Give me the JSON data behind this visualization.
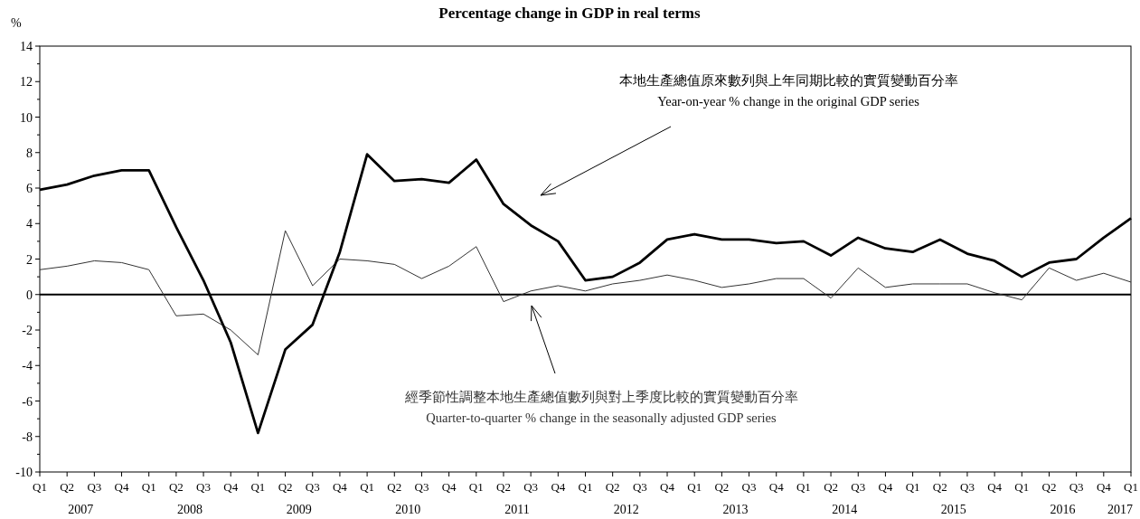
{
  "chart_data": {
    "type": "line",
    "title": "Percentage change in GDP in real terms",
    "ylabel": "%",
    "categories": [
      "Q1",
      "Q2",
      "Q3",
      "Q4",
      "Q1",
      "Q2",
      "Q3",
      "Q4",
      "Q1",
      "Q2",
      "Q3",
      "Q4",
      "Q1",
      "Q2",
      "Q3",
      "Q4",
      "Q1",
      "Q2",
      "Q3",
      "Q4",
      "Q1",
      "Q2",
      "Q3",
      "Q4",
      "Q1",
      "Q2",
      "Q3",
      "Q4",
      "Q1",
      "Q2",
      "Q3",
      "Q4",
      "Q1",
      "Q2",
      "Q3",
      "Q4",
      "Q1",
      "Q2",
      "Q3",
      "Q4",
      "Q1"
    ],
    "series": [
      {
        "name": "本地生產總值原來數列與上年同期比較的實質變動百分率\nYear-on-year % change in the original GDP series",
        "color": "#000000",
        "values": [
          5.9,
          6.2,
          6.7,
          7.0,
          7.0,
          3.8,
          0.8,
          -2.7,
          -7.8,
          -3.1,
          -1.7,
          2.4,
          7.9,
          6.4,
          6.5,
          6.3,
          7.6,
          5.1,
          3.9,
          3.0,
          0.8,
          1.0,
          1.8,
          3.1,
          3.4,
          3.1,
          3.1,
          2.9,
          3.0,
          2.2,
          3.2,
          2.6,
          2.4,
          3.1,
          2.3,
          1.9,
          1.0,
          1.8,
          2.0,
          3.2,
          4.3
        ]
      },
      {
        "name": "經季節性調整本地生產總值數列與對上季度比較的實質變動百分率\nQuarter-to-quarter % change in the seasonally adjusted GDP series",
        "color": "#333333",
        "values": [
          1.4,
          1.6,
          1.9,
          1.8,
          1.4,
          -1.2,
          -1.1,
          -2.0,
          -3.4,
          3.6,
          0.5,
          2.0,
          1.9,
          1.7,
          0.9,
          1.6,
          2.7,
          -0.4,
          0.2,
          0.5,
          0.2,
          0.6,
          0.8,
          1.1,
          0.8,
          0.4,
          0.6,
          0.9,
          0.9,
          -0.2,
          1.5,
          0.4,
          0.6,
          0.6,
          0.6,
          0.1,
          -0.3,
          1.5,
          0.8,
          1.2,
          0.7
        ]
      }
    ],
    "annotations": [
      "2007",
      "2008",
      "2009",
      "2010",
      "2011",
      "2012",
      "2013",
      "2014",
      "2015",
      "2016",
      "2017"
    ],
    "ylim": [
      -10,
      14
    ],
    "yticks": [
      -10,
      {
        "value": -9,
        "label": null
      },
      -8,
      {
        "value": -7,
        "label": null
      },
      -6,
      {
        "value": -5,
        "label": null
      },
      -4,
      {
        "value": -3,
        "label": null
      },
      -2,
      {
        "value": -1,
        "label": null
      },
      0,
      {
        "value": 1,
        "label": null
      },
      2,
      {
        "value": 3,
        "label": null
      },
      4,
      {
        "value": 5,
        "label": null
      },
      6,
      {
        "value": 7,
        "label": null
      },
      8,
      {
        "value": 9,
        "label": null
      },
      10,
      {
        "value": 11,
        "label": null
      },
      12,
      {
        "value": 13,
        "label": null
      },
      14
    ],
    "ref_lines": [
      {
        "axis": "y",
        "value": 0
      }
    ],
    "grid": false,
    "marker": "none",
    "line_style": "solid"
  }
}
